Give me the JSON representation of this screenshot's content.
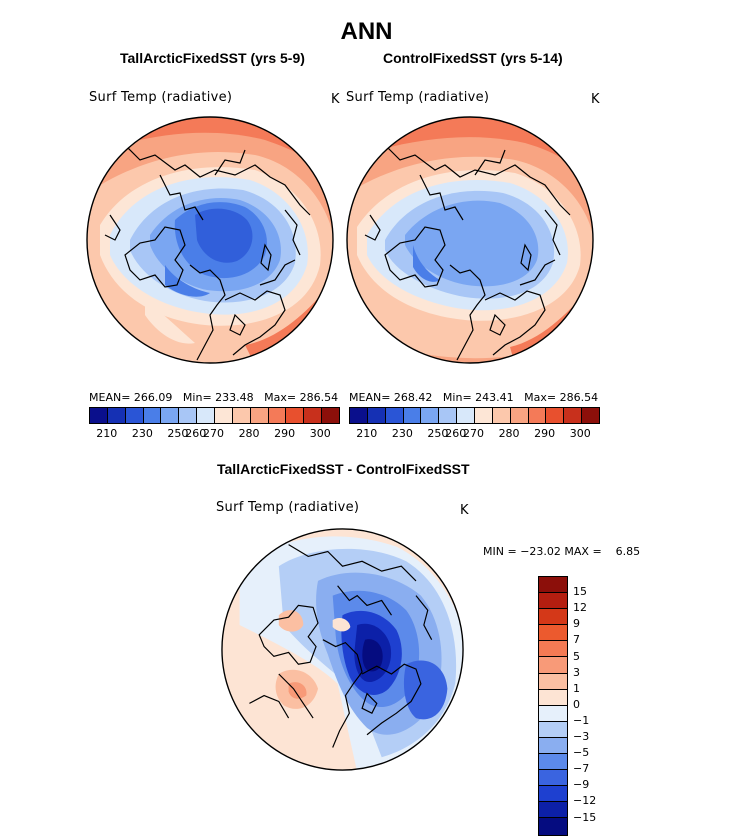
{
  "page": {
    "title": "ANN"
  },
  "panels": {
    "left": {
      "title": "TallArcticFixedSST (yrs 5-9)",
      "field": "Surf Temp (radiative)",
      "units": "K",
      "mean_label": "MEAN=",
      "mean": "266.09",
      "min_label": "Min=",
      "min": "233.48",
      "max_label": "Max=",
      "max": "286.54"
    },
    "right": {
      "title": "ControlFixedSST (yrs 5-14)",
      "field": "Surf Temp (radiative)",
      "units": "K",
      "mean_label": "MEAN=",
      "mean": "268.42",
      "min_label": "Min=",
      "min": "243.41",
      "max_label": "Max=",
      "max": "286.54"
    },
    "diff": {
      "title": "TallArcticFixedSST - ControlFixedSST",
      "field": "Surf Temp (radiative)",
      "units": "K",
      "min_label": "MIN =",
      "min": "−23.02",
      "max_label": "MAX =",
      "max": "6.85"
    }
  },
  "colorbars": {
    "temp": {
      "colors": [
        "#0a0f8c",
        "#1530b4",
        "#2a55d6",
        "#4a7ee8",
        "#7aa6f2",
        "#a8c6f6",
        "#d8e8fa",
        "#fde6d6",
        "#fcc8ac",
        "#f8a482",
        "#f47a58",
        "#e8502e",
        "#c8301c",
        "#8c0f0a"
      ],
      "ticks": [
        "210",
        "230",
        "250",
        "260",
        "270",
        "280",
        "290",
        "300"
      ]
    },
    "diff": {
      "colors": [
        "#8c0f0a",
        "#b41e10",
        "#d43818",
        "#ec5a2e",
        "#f47a54",
        "#f89a78",
        "#fbbfa2",
        "#fde4d4",
        "#e6f0fb",
        "#b4cef6",
        "#8aaef0",
        "#5c8aea",
        "#3a64e0",
        "#1e40d0",
        "#0c20a8",
        "#050c80"
      ],
      "ticks": [
        "15",
        "12",
        "9",
        "7",
        "5",
        "3",
        "1",
        "0",
        "−1",
        "−3",
        "−5",
        "−7",
        "−9",
        "−12",
        "−15"
      ]
    }
  },
  "maps": {
    "outline": "#000000",
    "coast": "#000000"
  }
}
